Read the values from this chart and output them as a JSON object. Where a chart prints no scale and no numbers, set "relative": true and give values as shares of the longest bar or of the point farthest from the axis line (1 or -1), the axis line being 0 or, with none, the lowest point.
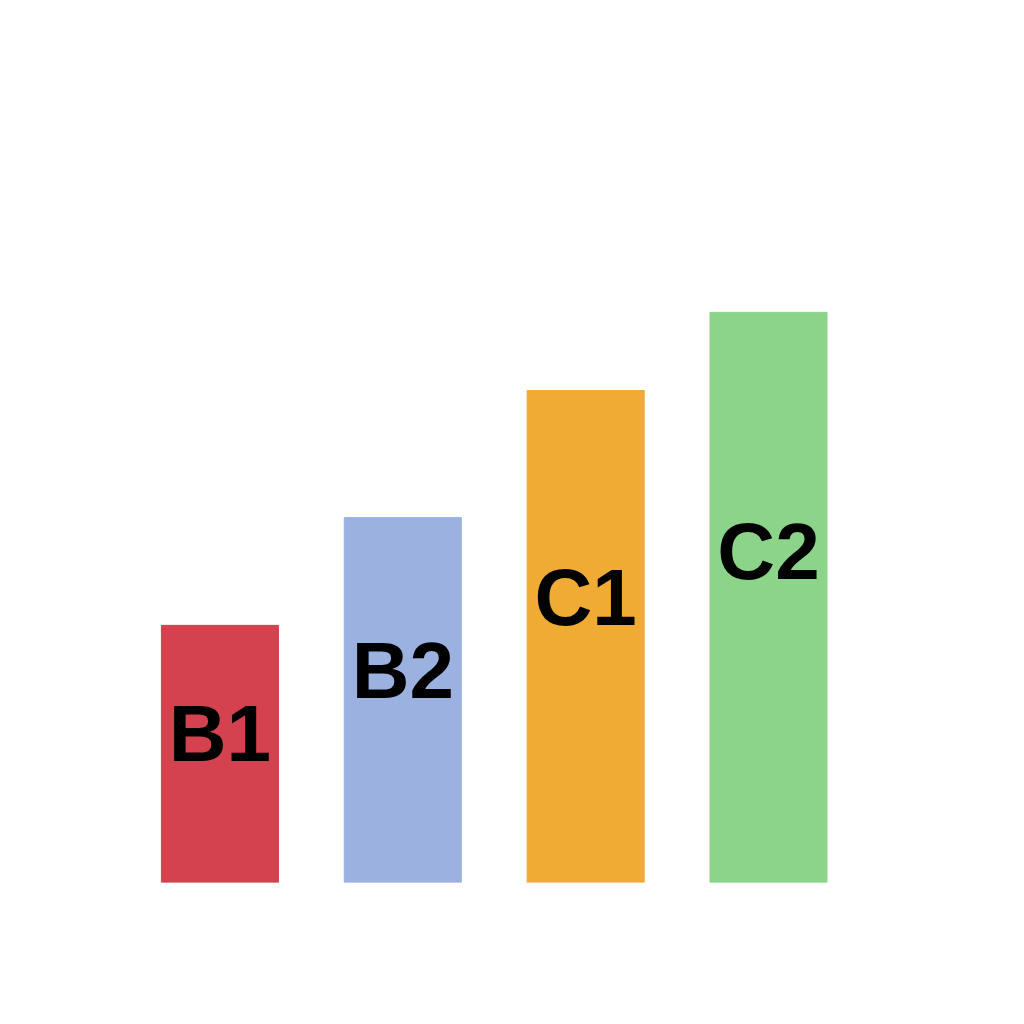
{
  "chart_data": {
    "type": "bar",
    "relative": true,
    "categories": [
      "B1",
      "B2",
      "C1",
      "C2"
    ],
    "values": [
      0.451,
      0.64,
      0.863,
      1
    ],
    "colors": [
      "#d4414f",
      "#9bb1e0",
      "#f0ab35",
      "#8cd48a"
    ]
  }
}
